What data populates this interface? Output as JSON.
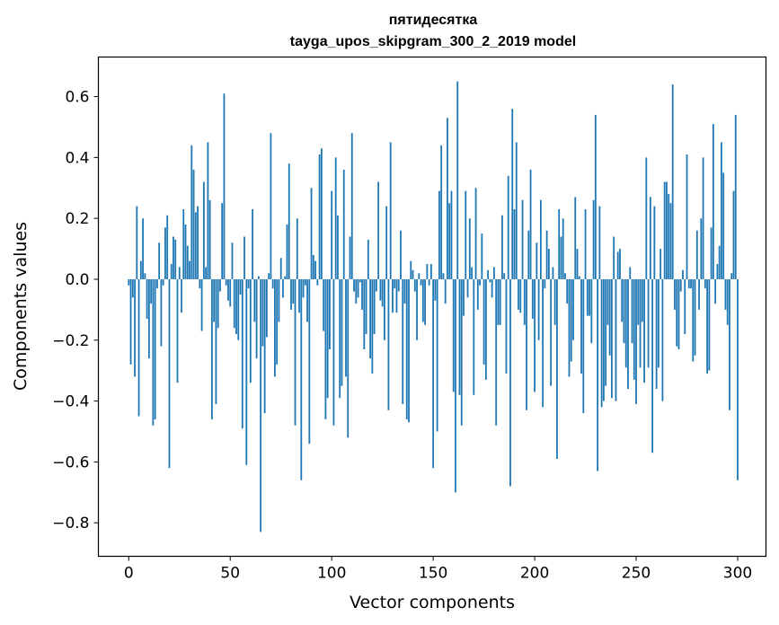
{
  "chart_data": {
    "type": "bar",
    "title": [
      "пятидесятка",
      "tayga_upos_skipgram_300_2_2019 model"
    ],
    "xlabel": "Vector components",
    "ylabel": "Components values",
    "xlim": [
      -14.95,
      313.95
    ],
    "ylim": [
      -0.91,
      0.73
    ],
    "xticks": [
      0,
      50,
      100,
      150,
      200,
      250,
      300
    ],
    "xtick_labels": [
      "0",
      "50",
      "100",
      "150",
      "200",
      "250",
      "300"
    ],
    "yticks": [
      0.6,
      0.4,
      0.2,
      0.0,
      -0.2,
      -0.4,
      -0.6,
      -0.8
    ],
    "ytick_labels": [
      "0.6",
      "0.4",
      "0.2",
      "0.0",
      "−0.2",
      "−0.4",
      "−0.6",
      "−0.8"
    ],
    "bar_color": "#1f77b4",
    "grid": false,
    "legend": "none",
    "values": [
      -0.02,
      -0.28,
      -0.06,
      -0.32,
      0.24,
      -0.45,
      0.06,
      0.2,
      0.02,
      -0.13,
      -0.26,
      -0.08,
      -0.48,
      -0.46,
      -0.03,
      0.12,
      -0.22,
      -0.02,
      0.17,
      0.21,
      -0.62,
      0.05,
      0.14,
      0.13,
      -0.34,
      0.04,
      -0.11,
      0.23,
      0.18,
      0.11,
      0.06,
      0.44,
      0.36,
      0.22,
      0.24,
      -0.03,
      -0.17,
      0.32,
      0.04,
      0.45,
      0.26,
      -0.46,
      -0.14,
      -0.41,
      -0.16,
      -0.04,
      0.25,
      0.61,
      -0.02,
      -0.07,
      -0.09,
      0.12,
      -0.16,
      -0.18,
      -0.2,
      -0.05,
      -0.49,
      0.14,
      -0.61,
      -0.03,
      -0.34,
      0.23,
      -0.14,
      -0.26,
      0.01,
      -0.83,
      -0.22,
      -0.44,
      -0.19,
      0.02,
      0.48,
      -0.03,
      -0.32,
      -0.28,
      -0.14,
      0.07,
      -0.06,
      0.01,
      0.18,
      0.38,
      -0.1,
      -0.08,
      -0.48,
      0.2,
      -0.11,
      -0.66,
      -0.06,
      -0.02,
      -0.14,
      -0.54,
      0.3,
      0.08,
      0.06,
      -0.02,
      0.41,
      0.43,
      -0.17,
      -0.46,
      -0.39,
      -0.23,
      0.29,
      -0.48,
      0.4,
      0.21,
      -0.39,
      -0.35,
      0.36,
      -0.32,
      -0.52,
      0.14,
      0.48,
      -0.04,
      -0.08,
      -0.06,
      -0.01,
      -0.1,
      -0.23,
      -0.18,
      0.13,
      -0.26,
      -0.31,
      -0.18,
      -0.04,
      0.32,
      -0.07,
      -0.09,
      -0.2,
      0.24,
      -0.43,
      0.45,
      -0.11,
      -0.03,
      -0.11,
      -0.04,
      0.16,
      -0.41,
      -0.08,
      -0.46,
      -0.47,
      0.06,
      0.03,
      -0.04,
      -0.2,
      0.02,
      -0.02,
      -0.14,
      -0.15,
      0.05,
      -0.02,
      0.05,
      -0.62,
      -0.07,
      -0.5,
      0.29,
      0.44,
      0.02,
      -0.08,
      0.53,
      0.25,
      0.29,
      -0.37,
      -0.7,
      0.65,
      -0.38,
      -0.48,
      -0.12,
      0.29,
      -0.06,
      0.2,
      0.04,
      -0.38,
      0.3,
      -0.1,
      -0.02,
      0.15,
      -0.28,
      -0.33,
      0.03,
      -0.01,
      -0.06,
      0.04,
      -0.48,
      -0.15,
      -0.15,
      0.21,
      0.02,
      -0.31,
      0.34,
      -0.68,
      0.56,
      0.23,
      0.45,
      -0.1,
      -0.11,
      0.26,
      -0.15,
      -0.43,
      0.16,
      0.36,
      -0.13,
      -0.37,
      0.12,
      -0.2,
      0.26,
      -0.42,
      -0.03,
      0.16,
      0.1,
      -0.35,
      0.04,
      -0.15,
      -0.59,
      0.23,
      0.14,
      0.2,
      0.02,
      -0.08,
      -0.32,
      -0.27,
      -0.2,
      0.27,
      0.1,
      0.01,
      -0.31,
      -0.44,
      0.23,
      -0.12,
      -0.12,
      -0.21,
      0.26,
      0.54,
      -0.63,
      0.24,
      -0.42,
      -0.4,
      -0.35,
      -0.15,
      -0.25,
      -0.39,
      0.14,
      -0.4,
      0.09,
      0.1,
      -0.14,
      -0.21,
      -0.29,
      -0.36,
      0.04,
      -0.21,
      -0.33,
      -0.41,
      -0.15,
      -0.29,
      -0.14,
      -0.34,
      0.4,
      -0.29,
      0.27,
      -0.57,
      0.24,
      -0.36,
      -0.29,
      0.1,
      -0.4,
      0.32,
      0.32,
      0.28,
      0.25,
      0.64,
      -0.1,
      -0.22,
      -0.23,
      -0.04,
      0.03,
      -0.18,
      0.41,
      -0.03,
      -0.03,
      -0.27,
      -0.25,
      0.16,
      -0.1,
      0.2,
      0.4,
      -0.03,
      -0.31,
      -0.3,
      0.17,
      0.51,
      -0.08,
      0.05,
      0.11,
      0.45,
      0.35,
      -0.1,
      -0.15,
      -0.43,
      0.02,
      0.29,
      0.54,
      -0.66
    ]
  }
}
